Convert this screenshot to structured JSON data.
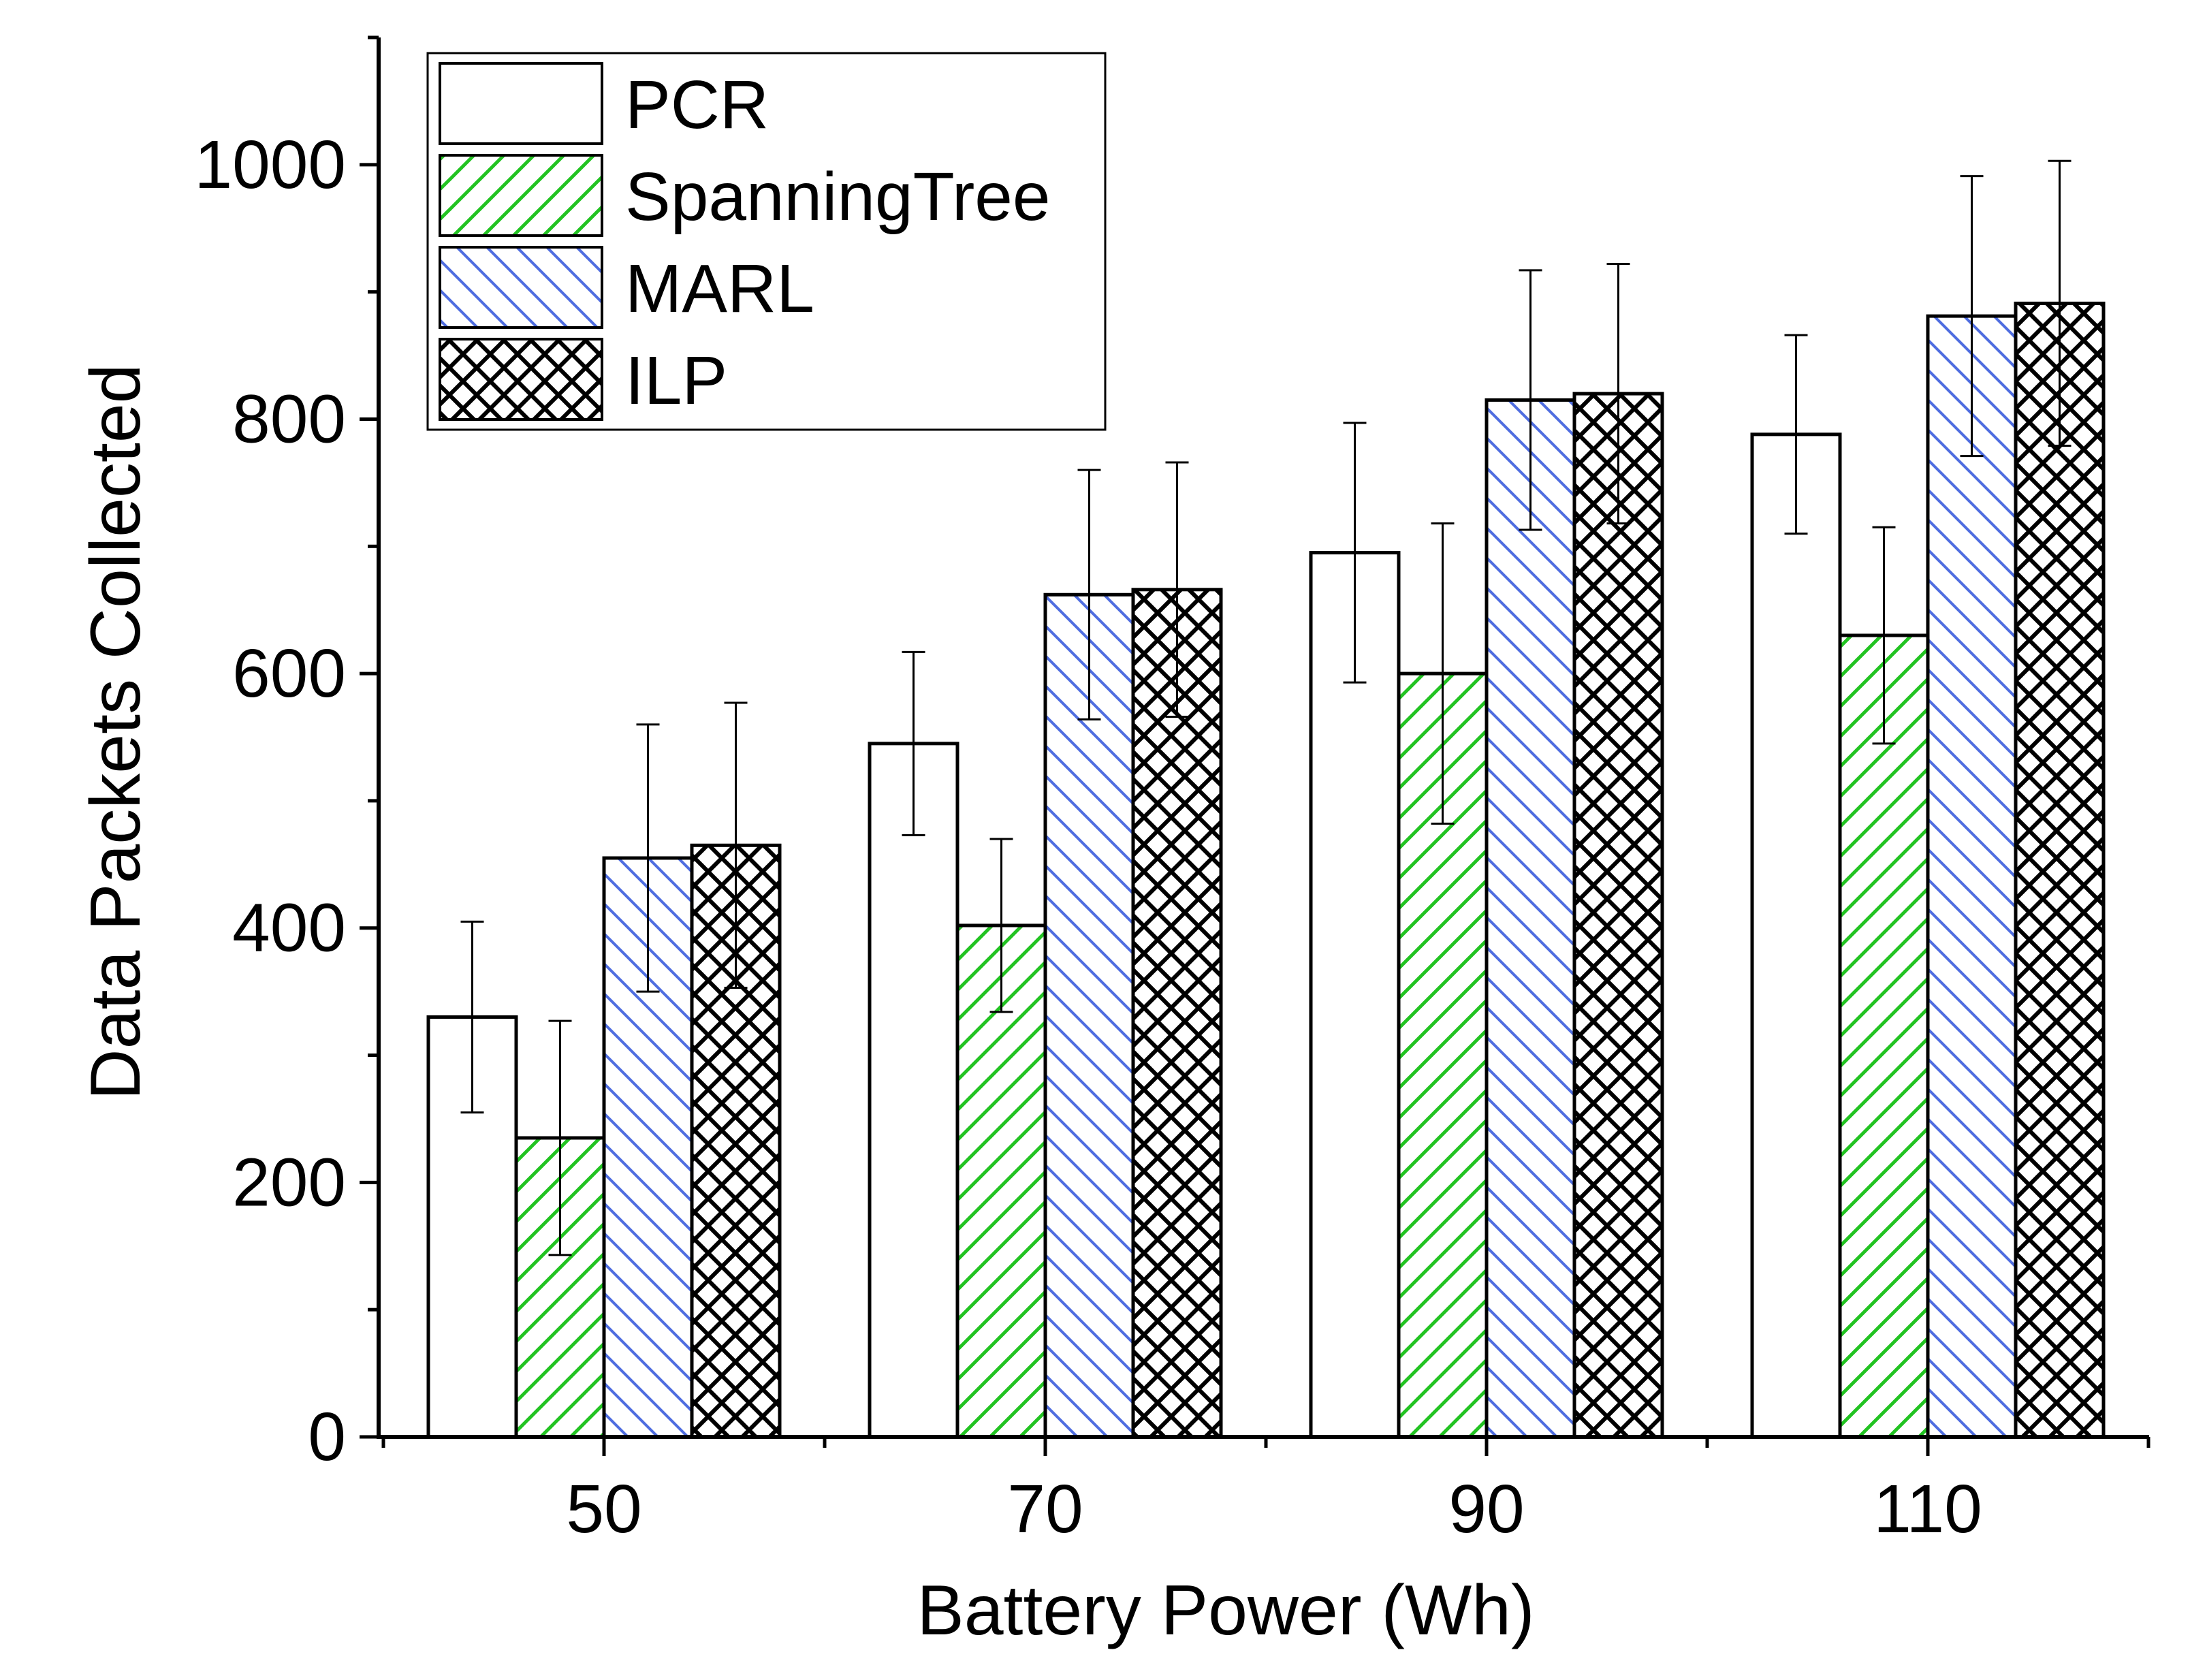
{
  "chart_data": {
    "type": "bar",
    "xlabel": "Battery Power (Wh)",
    "ylabel": "Data Packets Collected",
    "categories": [
      "50",
      "70",
      "90",
      "110"
    ],
    "ylim": [
      0,
      1100
    ],
    "yticks": [
      "0",
      "200",
      "400",
      "600",
      "800",
      "1000"
    ],
    "grid": false,
    "legend_position": "top-left",
    "series": [
      {
        "name": "PCR",
        "pattern": "none",
        "color": "#000000",
        "values": [
          330,
          545,
          695,
          788
        ],
        "error": [
          75,
          72,
          102,
          78
        ]
      },
      {
        "name": "SpanningTree",
        "pattern": "diagonal-up",
        "color": "#22c322",
        "values": [
          235,
          402,
          600,
          630
        ],
        "error": [
          92,
          68,
          118,
          85
        ]
      },
      {
        "name": "MARL",
        "pattern": "diagonal-down",
        "color": "#4f6de0",
        "values": [
          455,
          662,
          815,
          881
        ],
        "error": [
          105,
          98,
          102,
          110
        ]
      },
      {
        "name": "ILP",
        "pattern": "crosshatch",
        "color": "#000000",
        "values": [
          465,
          666,
          820,
          891
        ],
        "error": [
          112,
          100,
          102,
          112
        ]
      }
    ]
  }
}
